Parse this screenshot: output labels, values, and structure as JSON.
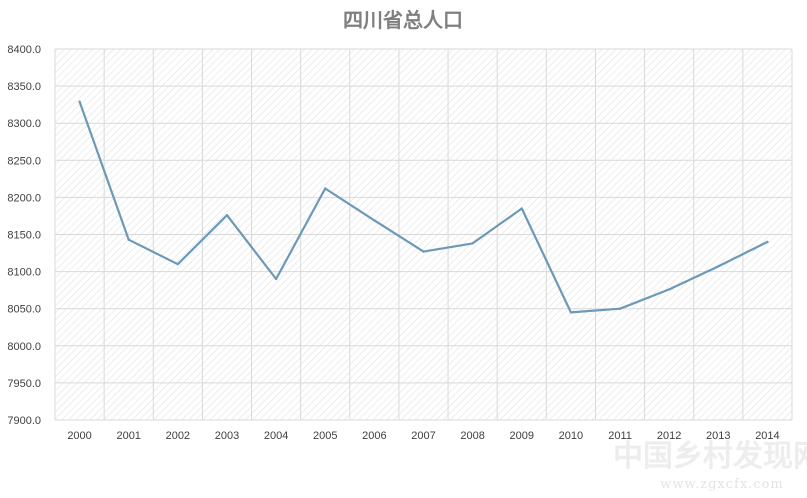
{
  "chart_data": {
    "type": "line",
    "title": "四川省总人口",
    "xlabel": "",
    "ylabel": "",
    "categories": [
      "2000",
      "2001",
      "2002",
      "2003",
      "2004",
      "2005",
      "2006",
      "2007",
      "2008",
      "2009",
      "2010",
      "2011",
      "2012",
      "2013",
      "2014"
    ],
    "series": [
      {
        "values": [
          8329,
          8143,
          8110,
          8176,
          8090,
          8212,
          8169,
          8127,
          8138,
          8185,
          8045,
          8050,
          8076,
          8107,
          8140
        ]
      }
    ],
    "ylim": [
      7900,
      8400
    ],
    "yticks": [
      7900,
      7950,
      8000,
      8050,
      8100,
      8150,
      8200,
      8250,
      8300,
      8350,
      8400
    ],
    "ytick_format": "0.0",
    "grid": true,
    "legend": "none",
    "line_color": "#6c99b7"
  },
  "watermark": {
    "line1": "中国乡村发现网",
    "line2": "www.zgxcfx.com"
  }
}
